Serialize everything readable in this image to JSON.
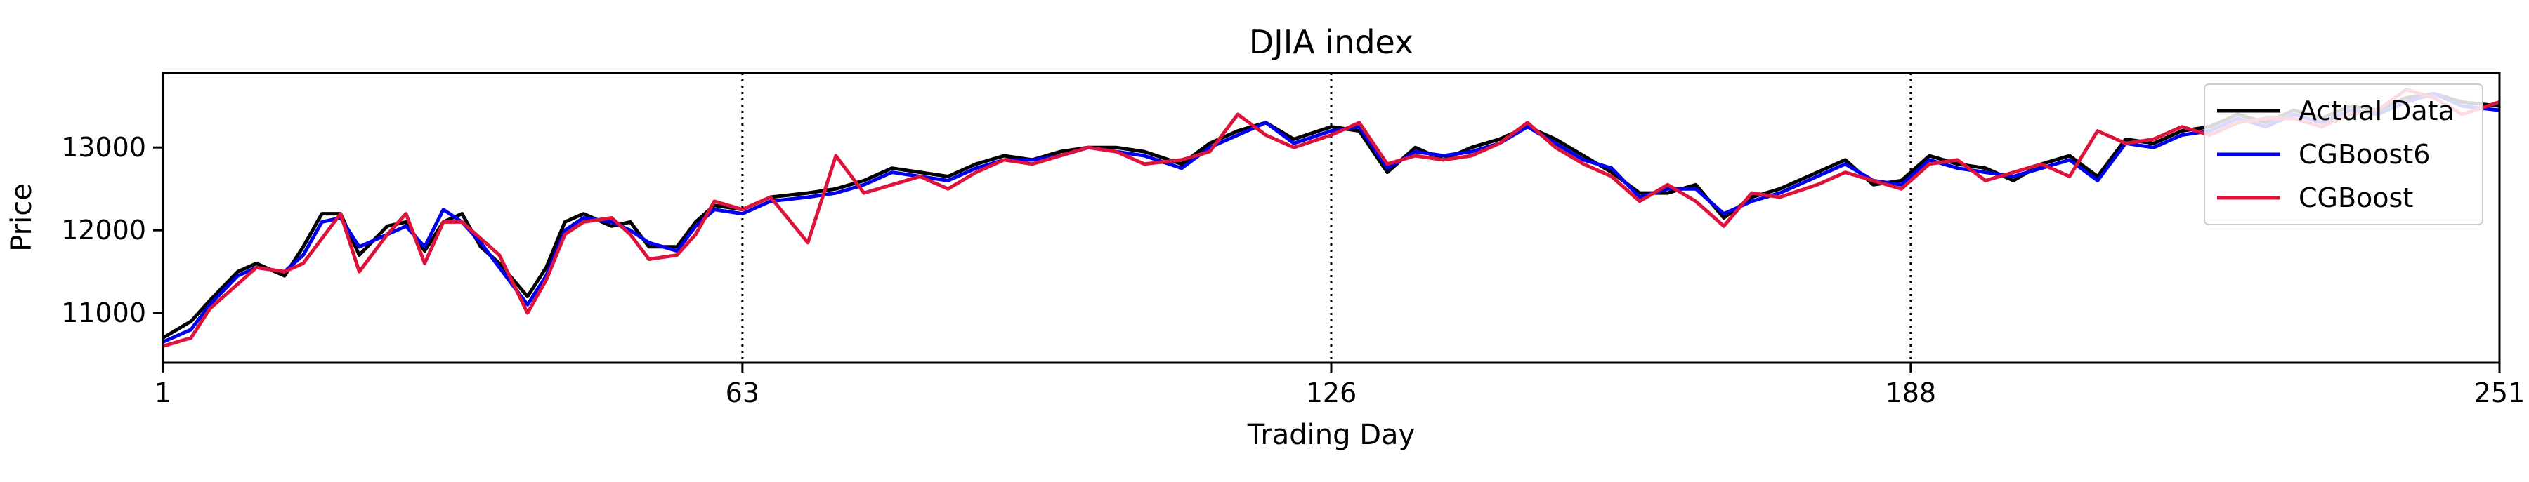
{
  "chart_data": {
    "type": "line",
    "title": "DJIA index",
    "xlabel": "Trading Day",
    "ylabel": "Price",
    "xlim": [
      1,
      251
    ],
    "ylim": [
      10400,
      13900
    ],
    "xticks": [
      1,
      63,
      126,
      188,
      251
    ],
    "yticks": [
      11000,
      12000,
      13000
    ],
    "vlines": [
      63,
      126,
      188
    ],
    "grid": false,
    "legend_position": "top-right",
    "colors": {
      "Actual Data": "#000000",
      "CGBoost6": "#0000ee",
      "CGBoost": "#dc143c"
    },
    "series": [
      {
        "name": "Actual Data",
        "x": [
          1,
          4,
          6,
          9,
          11,
          14,
          16,
          18,
          20,
          22,
          25,
          27,
          29,
          31,
          33,
          35,
          37,
          40,
          42,
          44,
          46,
          49,
          51,
          53,
          56,
          58,
          60,
          63,
          66,
          70,
          73,
          76,
          79,
          82,
          85,
          88,
          91,
          94,
          97,
          100,
          103,
          106,
          110,
          113,
          116,
          119,
          122,
          126,
          129,
          132,
          135,
          138,
          141,
          144,
          147,
          150,
          153,
          156,
          159,
          162,
          165,
          168,
          171,
          174,
          178,
          181,
          184,
          187,
          190,
          193,
          196,
          199,
          202,
          205,
          208,
          211,
          214,
          217,
          220,
          223,
          226,
          229,
          232,
          235,
          238,
          241,
          244,
          247,
          251
        ],
        "y": [
          10700,
          10900,
          11150,
          11500,
          11600,
          11450,
          11800,
          12200,
          12200,
          11700,
          12050,
          12100,
          11750,
          12100,
          12200,
          11800,
          11600,
          11200,
          11550,
          12100,
          12200,
          12050,
          12100,
          11800,
          11800,
          12100,
          12300,
          12250,
          12400,
          12450,
          12500,
          12600,
          12750,
          12700,
          12650,
          12800,
          12900,
          12850,
          12950,
          13000,
          13000,
          12950,
          12800,
          13050,
          13200,
          13300,
          13100,
          13250,
          13200,
          12700,
          13000,
          12850,
          13000,
          13100,
          13250,
          13100,
          12900,
          12700,
          12450,
          12450,
          12550,
          12150,
          12400,
          12500,
          12700,
          12850,
          12550,
          12600,
          12900,
          12800,
          12750,
          12600,
          12800,
          12900,
          12650,
          13100,
          13050,
          13200,
          13250,
          13400,
          13300,
          13450,
          13350,
          13500,
          13450,
          13600,
          13650,
          13550,
          13500
        ]
      },
      {
        "name": "CGBoost6",
        "x": [
          1,
          4,
          6,
          9,
          11,
          14,
          16,
          18,
          20,
          22,
          25,
          27,
          29,
          31,
          33,
          35,
          37,
          40,
          42,
          44,
          46,
          49,
          51,
          53,
          56,
          58,
          60,
          63,
          66,
          70,
          73,
          76,
          79,
          82,
          85,
          88,
          91,
          94,
          97,
          100,
          103,
          106,
          110,
          113,
          116,
          119,
          122,
          126,
          129,
          132,
          135,
          138,
          141,
          144,
          147,
          150,
          153,
          156,
          159,
          162,
          165,
          168,
          171,
          174,
          178,
          181,
          184,
          187,
          190,
          193,
          196,
          199,
          202,
          205,
          208,
          211,
          214,
          217,
          220,
          223,
          226,
          229,
          232,
          235,
          238,
          241,
          244,
          247,
          251
        ],
        "y": [
          10650,
          10800,
          11100,
          11450,
          11550,
          11500,
          11700,
          12100,
          12150,
          11800,
          11950,
          12050,
          11800,
          12250,
          12100,
          11850,
          11550,
          11100,
          11450,
          12000,
          12150,
          12100,
          12000,
          11850,
          11750,
          12050,
          12250,
          12200,
          12350,
          12400,
          12450,
          12550,
          12700,
          12650,
          12600,
          12750,
          12850,
          12850,
          12900,
          13000,
          12950,
          12900,
          12750,
          13000,
          13150,
          13300,
          13050,
          13200,
          13250,
          12750,
          12950,
          12900,
          12950,
          13050,
          13250,
          13050,
          12850,
          12750,
          12400,
          12500,
          12500,
          12200,
          12350,
          12450,
          12650,
          12800,
          12600,
          12550,
          12850,
          12750,
          12700,
          12650,
          12750,
          12850,
          12600,
          13050,
          13000,
          13150,
          13200,
          13350,
          13250,
          13400,
          13300,
          13450,
          13400,
          13550,
          13650,
          13500,
          13450
        ]
      },
      {
        "name": "CGBoost",
        "x": [
          1,
          4,
          6,
          9,
          11,
          14,
          16,
          18,
          20,
          22,
          25,
          27,
          29,
          31,
          33,
          35,
          37,
          40,
          42,
          44,
          46,
          49,
          51,
          53,
          56,
          58,
          60,
          63,
          66,
          70,
          73,
          76,
          79,
          82,
          85,
          88,
          91,
          94,
          97,
          100,
          103,
          106,
          110,
          113,
          116,
          119,
          122,
          126,
          129,
          132,
          135,
          138,
          141,
          144,
          147,
          150,
          153,
          156,
          159,
          162,
          165,
          168,
          171,
          174,
          178,
          181,
          184,
          187,
          190,
          193,
          196,
          199,
          202,
          205,
          208,
          211,
          214,
          217,
          220,
          223,
          226,
          229,
          232,
          235,
          238,
          241,
          244,
          247,
          251
        ],
        "y": [
          10600,
          10700,
          11050,
          11350,
          11550,
          11500,
          11600,
          11900,
          12200,
          11500,
          11950,
          12200,
          11600,
          12100,
          12100,
          11900,
          11700,
          11000,
          11400,
          11950,
          12100,
          12150,
          11950,
          11650,
          11700,
          11950,
          12350,
          12250,
          12400,
          11850,
          12900,
          12450,
          12550,
          12650,
          12500,
          12700,
          12850,
          12800,
          12900,
          13000,
          12950,
          12800,
          12850,
          12950,
          13400,
          13150,
          13000,
          13150,
          13300,
          12800,
          12900,
          12850,
          12900,
          13050,
          13300,
          13000,
          12800,
          12650,
          12350,
          12550,
          12350,
          12050,
          12450,
          12400,
          12550,
          12700,
          12600,
          12500,
          12800,
          12850,
          12600,
          12700,
          12800,
          12650,
          13200,
          13050,
          13100,
          13250,
          13150,
          13300,
          13350,
          13350,
          13250,
          13400,
          13450,
          13700,
          13600,
          13400,
          13550
        ]
      }
    ]
  }
}
